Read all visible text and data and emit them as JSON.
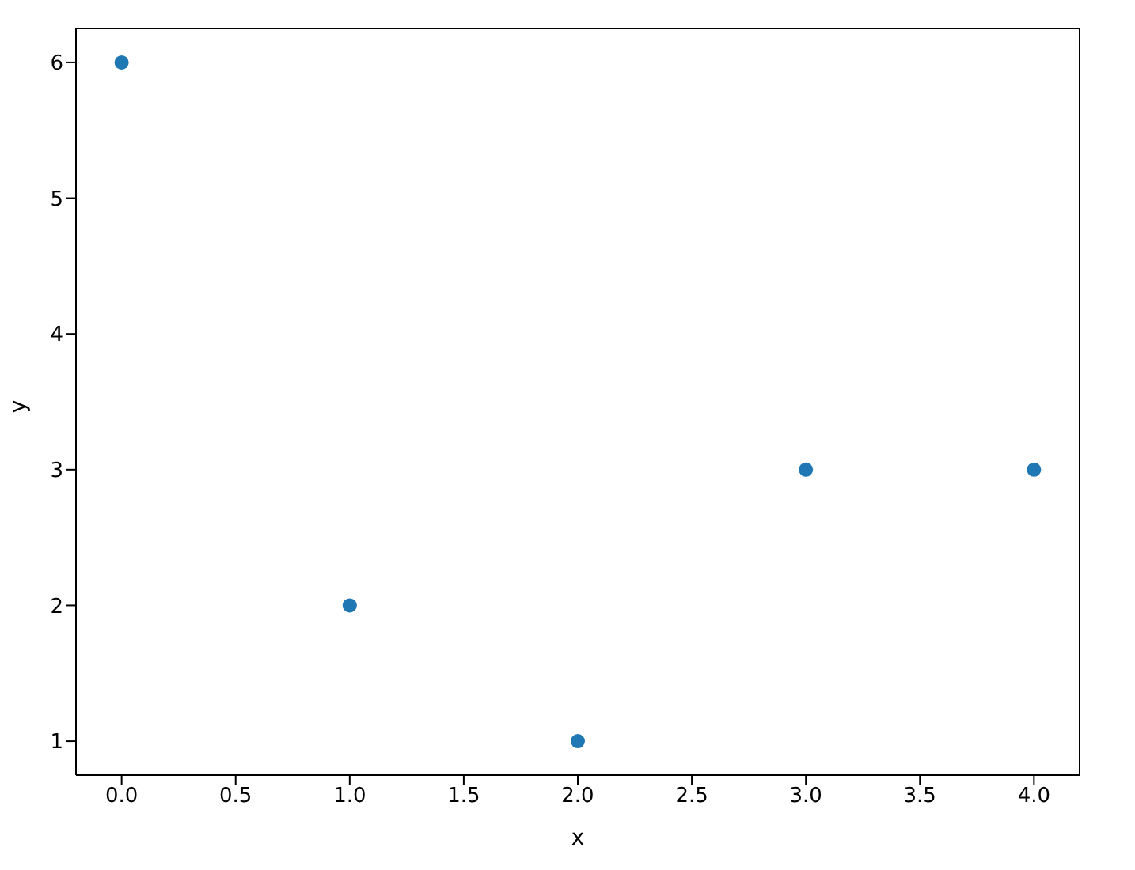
{
  "chart_data": {
    "type": "scatter",
    "xlabel": "x",
    "ylabel": "y",
    "x": [
      0,
      1,
      2,
      3,
      4
    ],
    "values": [
      6,
      2,
      1,
      3,
      3
    ],
    "color": "#1f77b4",
    "marker": "circle",
    "xlim": [
      -0.2,
      4.2
    ],
    "xticks": [
      {
        "value": 0,
        "label": "0.0"
      },
      {
        "value": 0.5,
        "label": "0.5"
      },
      {
        "value": 1,
        "label": "1.0"
      },
      {
        "value": 1.5,
        "label": "1.5"
      },
      {
        "value": 2,
        "label": "2.0"
      },
      {
        "value": 2.5,
        "label": "2.5"
      },
      {
        "value": 3,
        "label": "3.0"
      },
      {
        "value": 3.5,
        "label": "3.5"
      },
      {
        "value": 4,
        "label": "4.0"
      }
    ],
    "ylim": [
      0.75,
      6.25
    ],
    "yticks": [
      1,
      2,
      3,
      4,
      5,
      6
    ],
    "legend": false
  }
}
